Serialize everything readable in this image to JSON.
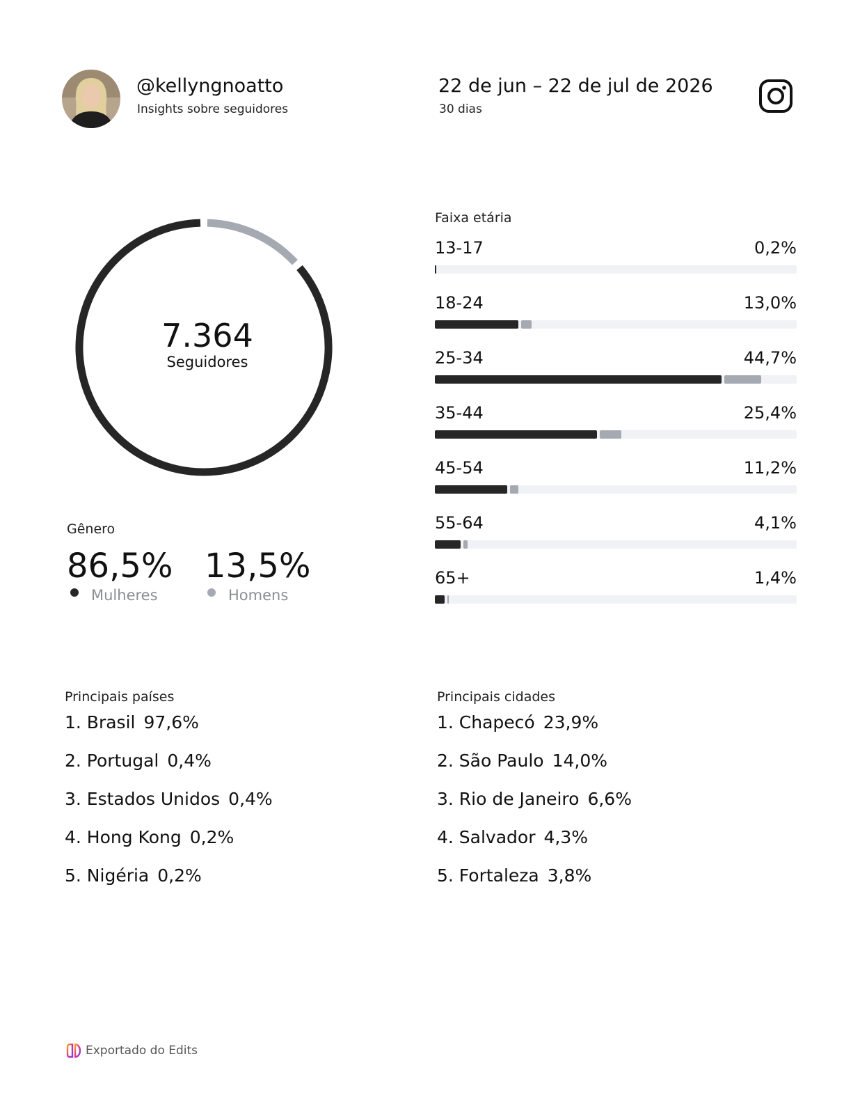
{
  "header": {
    "handle": "@kellyngnoatto",
    "subtitle": "Insights sobre seguidores",
    "date_range": "22 de jun – 22 de jul de 2026",
    "period": "30 dias"
  },
  "icons": {
    "avatar": "profile-photo",
    "app": "instagram-icon",
    "footer": "edits-logo-icon"
  },
  "followers": {
    "count": "7.364",
    "label": "Seguidores"
  },
  "gender": {
    "title": "Gênero",
    "items": [
      {
        "value": "86,5%",
        "label": "Mulheres",
        "color": "#262626"
      },
      {
        "value": "13,5%",
        "label": "Homens",
        "color": "#a5a9b1"
      }
    ]
  },
  "age": {
    "title": "Faixa etária"
  },
  "countries": {
    "title": "Principais países",
    "items": [
      {
        "name": "1. Brasil",
        "value": "97,6%"
      },
      {
        "name": "2. Portugal",
        "value": "0,4%"
      },
      {
        "name": "3. Estados Unidos",
        "value": "0,4%"
      },
      {
        "name": "4. Hong Kong",
        "value": "0,2%"
      },
      {
        "name": "5. Nigéria",
        "value": "0,2%"
      }
    ]
  },
  "cities": {
    "title": "Principais cidades",
    "items": [
      {
        "name": "1. Chapecó",
        "value": "23,9%"
      },
      {
        "name": "2. São Paulo",
        "value": "14,0%"
      },
      {
        "name": "3. Rio de Janeiro",
        "value": "6,6%"
      },
      {
        "name": "4. Salvador",
        "value": "4,3%"
      },
      {
        "name": "5. Fortaleza",
        "value": "3,8%"
      }
    ]
  },
  "footer": {
    "text": "Exportado do Edits"
  },
  "colors": {
    "women": "#262626",
    "men": "#a5a9b1",
    "track": "#f0f2f5"
  },
  "chart_data": [
    {
      "type": "pie",
      "categories": [
        "Mulheres",
        "Homens"
      ],
      "values": [
        86.5,
        13.5
      ],
      "title": "",
      "center_value": "7.364",
      "center_label": "Seguidores"
    },
    {
      "type": "bar",
      "title": "Faixa etária",
      "categories": [
        "13-17",
        "18-24",
        "25-34",
        "35-44",
        "45-54",
        "55-64",
        "65+"
      ],
      "labels": [
        "0,2%",
        "13,0%",
        "44,7%",
        "25,4%",
        "11,2%",
        "4,1%",
        "1,4%"
      ],
      "values": [
        0.2,
        13.0,
        44.7,
        25.4,
        11.2,
        4.1,
        1.4
      ],
      "series": [
        {
          "values": [
            0.2,
            11.5,
            39.6,
            22.4,
            10.0,
            3.6,
            1.3
          ]
        },
        {
          "values": [
            0.0,
            1.5,
            5.1,
            3.0,
            1.2,
            0.5,
            0.1
          ]
        }
      ],
      "xlim": [
        0,
        100
      ],
      "stacked": true
    }
  ]
}
